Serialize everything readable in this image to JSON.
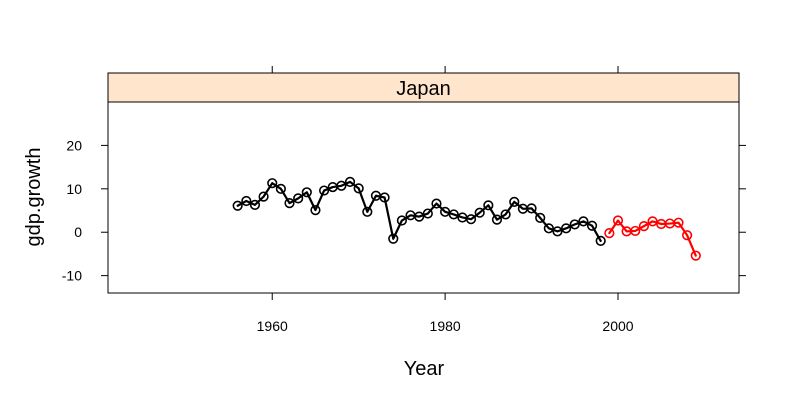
{
  "chart_data": {
    "type": "line",
    "panel_title": "Japan",
    "xlabel": "Year",
    "ylabel": "gdp.growth",
    "xlim": [
      1941,
      2014
    ],
    "ylim": [
      -14,
      30
    ],
    "x_ticks": [
      1960,
      1980,
      2000
    ],
    "y_ticks": [
      -10,
      0,
      10,
      20
    ],
    "grid": false,
    "legend": "none",
    "series": [
      {
        "color": "#000000",
        "points": [
          [
            1956,
            6.1
          ],
          [
            1957,
            7.2
          ],
          [
            1958,
            6.3
          ],
          [
            1959,
            8.2
          ],
          [
            1960,
            11.3
          ],
          [
            1961,
            10.0
          ],
          [
            1962,
            6.7
          ],
          [
            1963,
            7.8
          ],
          [
            1964,
            9.2
          ],
          [
            1965,
            5.1
          ],
          [
            1966,
            9.6
          ],
          [
            1967,
            10.4
          ],
          [
            1968,
            10.7
          ],
          [
            1969,
            11.6
          ],
          [
            1970,
            10.1
          ],
          [
            1971,
            4.7
          ],
          [
            1972,
            8.4
          ],
          [
            1973,
            8.0
          ],
          [
            1974,
            -1.5
          ],
          [
            1975,
            2.7
          ],
          [
            1976,
            3.9
          ],
          [
            1977,
            3.6
          ],
          [
            1978,
            4.3
          ],
          [
            1979,
            6.6
          ],
          [
            1980,
            4.7
          ],
          [
            1981,
            4.1
          ],
          [
            1982,
            3.4
          ],
          [
            1983,
            3.0
          ],
          [
            1984,
            4.5
          ],
          [
            1985,
            6.2
          ],
          [
            1986,
            2.9
          ],
          [
            1987,
            4.1
          ],
          [
            1988,
            7.0
          ],
          [
            1989,
            5.4
          ],
          [
            1990,
            5.5
          ],
          [
            1991,
            3.3
          ],
          [
            1992,
            0.9
          ],
          [
            1993,
            0.2
          ],
          [
            1994,
            0.9
          ],
          [
            1995,
            1.8
          ],
          [
            1996,
            2.5
          ],
          [
            1997,
            1.5
          ],
          [
            1998,
            -2.0
          ]
        ]
      },
      {
        "color": "#ff0000",
        "points": [
          [
            1999,
            -0.2
          ],
          [
            2000,
            2.7
          ],
          [
            2001,
            0.2
          ],
          [
            2002,
            0.3
          ],
          [
            2003,
            1.4
          ],
          [
            2004,
            2.5
          ],
          [
            2005,
            1.9
          ],
          [
            2006,
            2.0
          ],
          [
            2007,
            2.2
          ],
          [
            2008,
            -0.7
          ],
          [
            2009,
            -5.4
          ]
        ]
      }
    ]
  }
}
